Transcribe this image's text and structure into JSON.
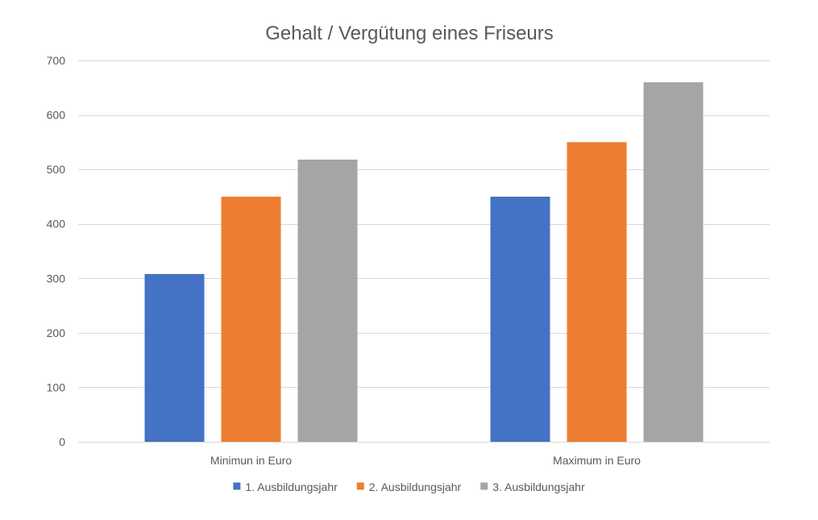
{
  "chart_data": {
    "type": "bar",
    "title": "Gehalt / Vergütung eines Friseurs",
    "xlabel": "",
    "ylabel": "",
    "categories": [
      "Minimun in Euro",
      "Maximum in Euro"
    ],
    "series": [
      {
        "name": "1. Ausbildungsjahr",
        "values": [
          308,
          450
        ],
        "color": "#4472C4"
      },
      {
        "name": "2. Ausbildungsjahr",
        "values": [
          450,
          550
        ],
        "color": "#ED7D31"
      },
      {
        "name": "3. Ausbildungsjahr",
        "values": [
          518,
          660
        ],
        "color": "#A5A5A5"
      }
    ],
    "ylim": [
      0,
      700
    ],
    "yticks": [
      0,
      100,
      200,
      300,
      400,
      500,
      600,
      700
    ],
    "grid": true,
    "legend_position": "bottom"
  }
}
